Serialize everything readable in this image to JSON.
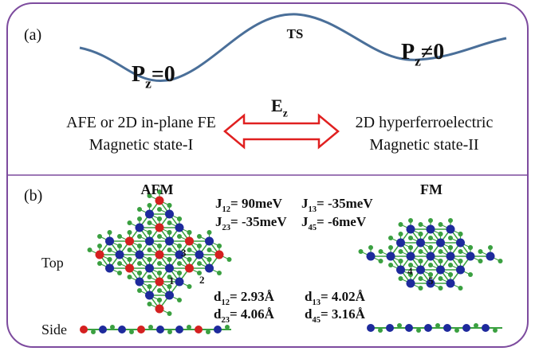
{
  "panel_a": {
    "label": "(a)",
    "ts": "TS",
    "left_state": {
      "base": "P",
      "sub": "z",
      "rest": "=0"
    },
    "right_state": {
      "base": "P",
      "sub": "z",
      "rest": "≠0"
    },
    "field": {
      "base": "E",
      "sub": "z"
    },
    "left_text": [
      "AFE or 2D in-plane FE",
      "Magnetic state-I"
    ],
    "right_text": [
      "2D hyperferroelectric",
      "Magnetic state-II"
    ]
  },
  "panel_b": {
    "label": "(b)",
    "afm": "AFM",
    "fm": "FM",
    "top": "Top",
    "side": "Side",
    "couplings": [
      {
        "base": "J",
        "sub": "12",
        "rest": "= 90meV"
      },
      {
        "base": "J",
        "sub": "13",
        "rest": "= -35meV"
      },
      {
        "base": "J",
        "sub": "23",
        "rest": "= -35meV"
      },
      {
        "base": "J",
        "sub": "45",
        "rest": "= -6meV"
      }
    ],
    "distances": [
      {
        "base": "d",
        "sub": "12",
        "rest": "= 2.93Å"
      },
      {
        "base": "d",
        "sub": "13",
        "rest": "= 4.02Å"
      },
      {
        "base": "d",
        "sub": "23",
        "rest": "= 4.06Å"
      },
      {
        "base": "d",
        "sub": "45",
        "rest": "= 3.16Å"
      }
    ],
    "atom_labels": [
      "1",
      "2",
      "3",
      "4",
      "5"
    ]
  }
}
